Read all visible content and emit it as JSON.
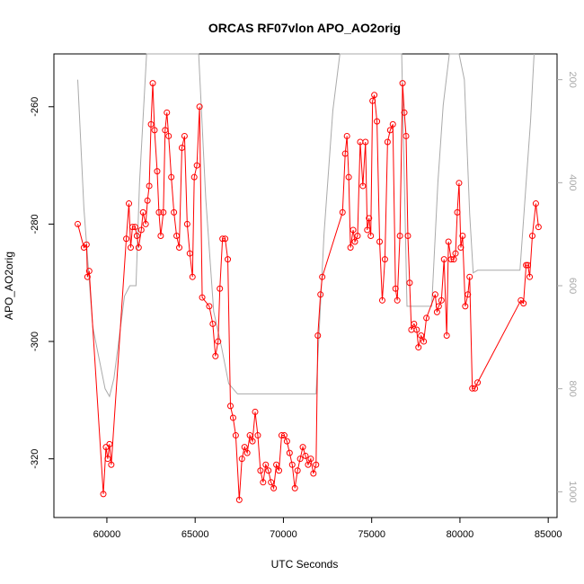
{
  "chart_data": {
    "type": "line",
    "title": "ORCAS RF07vlon APO_AO2orig",
    "xlabel": "UTC Seconds",
    "ylabel": "APO_AO2orig",
    "xlim": [
      57000,
      85500
    ],
    "ylim": [
      -330,
      -251
    ],
    "x_ticks": [
      60000,
      65000,
      70000,
      75000,
      80000,
      85000
    ],
    "x_tick_labels": [
      "60000",
      "65000",
      "70000",
      "75000",
      "80000",
      "85000"
    ],
    "y_ticks": [
      -260,
      -280,
      -300,
      -320
    ],
    "y_tick_labels": [
      "-260",
      "-280",
      "-300",
      "-320"
    ],
    "y2_range_top_to_bottom": [
      150,
      1050
    ],
    "y2_ticks": [
      200,
      400,
      600,
      800,
      1000
    ],
    "y2_tick_labels": [
      "200",
      "400",
      "600",
      "800",
      "1000"
    ],
    "grid": false,
    "colors": {
      "primary": "#ff0000",
      "secondary": "#aaaaaa",
      "axis": "#000000"
    },
    "series": [
      {
        "role": "primary",
        "marker": "open-circle",
        "points": [
          [
            58350,
            -280
          ],
          [
            58700,
            -284
          ],
          [
            58850,
            -283.5
          ],
          [
            58900,
            -289
          ],
          [
            59000,
            -288
          ],
          [
            59800,
            -326
          ],
          [
            59950,
            -318
          ],
          [
            60050,
            -320
          ],
          [
            60150,
            -317.5
          ],
          [
            60250,
            -321
          ],
          [
            61100,
            -282.5
          ],
          [
            61250,
            -276.5
          ],
          [
            61350,
            -284
          ],
          [
            61450,
            -280.5
          ],
          [
            61600,
            -280.5
          ],
          [
            61700,
            -282
          ],
          [
            61800,
            -284
          ],
          [
            61950,
            -281
          ],
          [
            62050,
            -278
          ],
          [
            62200,
            -280
          ],
          [
            62300,
            -276
          ],
          [
            62400,
            -273.5
          ],
          [
            62500,
            -263
          ],
          [
            62600,
            -256
          ],
          [
            62700,
            -264
          ],
          [
            62850,
            -271
          ],
          [
            62950,
            -278
          ],
          [
            63050,
            -282
          ],
          [
            63200,
            -278
          ],
          [
            63300,
            -264
          ],
          [
            63400,
            -261
          ],
          [
            63500,
            -265
          ],
          [
            63650,
            -272
          ],
          [
            63800,
            -278
          ],
          [
            63950,
            -282
          ],
          [
            64100,
            -284
          ],
          [
            64250,
            -267
          ],
          [
            64400,
            -265
          ],
          [
            64550,
            -280
          ],
          [
            64700,
            -285
          ],
          [
            64850,
            -289
          ],
          [
            64950,
            -272
          ],
          [
            65100,
            -270
          ],
          [
            65250,
            -260
          ],
          [
            65400,
            -292.5
          ],
          [
            65800,
            -294
          ],
          [
            66000,
            -297
          ],
          [
            66150,
            -302.5
          ],
          [
            66300,
            -300
          ],
          [
            66400,
            -291
          ],
          [
            66550,
            -282.5
          ],
          [
            66700,
            -282.5
          ],
          [
            66850,
            -286
          ],
          [
            67000,
            -311
          ],
          [
            67150,
            -313
          ],
          [
            67300,
            -316
          ],
          [
            67500,
            -327
          ],
          [
            67650,
            -320
          ],
          [
            67800,
            -318
          ],
          [
            67950,
            -319
          ],
          [
            68100,
            -316
          ],
          [
            68250,
            -317
          ],
          [
            68400,
            -312
          ],
          [
            68550,
            -316
          ],
          [
            68700,
            -322
          ],
          [
            68850,
            -324
          ],
          [
            69000,
            -321
          ],
          [
            69150,
            -322
          ],
          [
            69300,
            -324
          ],
          [
            69450,
            -325
          ],
          [
            69600,
            -321
          ],
          [
            69750,
            -322
          ],
          [
            69900,
            -316
          ],
          [
            70050,
            -316
          ],
          [
            70200,
            -317
          ],
          [
            70350,
            -319
          ],
          [
            70500,
            -321
          ],
          [
            70650,
            -325
          ],
          [
            70800,
            -322
          ],
          [
            70950,
            -320
          ],
          [
            71100,
            -318
          ],
          [
            71250,
            -319.5
          ],
          [
            71400,
            -321
          ],
          [
            71550,
            -320
          ],
          [
            71700,
            -322.5
          ],
          [
            71850,
            -321
          ],
          [
            71950,
            -299
          ],
          [
            72100,
            -292
          ],
          [
            72200,
            -289
          ],
          [
            73350,
            -278
          ],
          [
            73500,
            -268
          ],
          [
            73600,
            -265
          ],
          [
            73700,
            -272
          ],
          [
            73800,
            -284
          ],
          [
            73950,
            -281
          ],
          [
            74050,
            -283
          ],
          [
            74200,
            -282
          ],
          [
            74350,
            -266
          ],
          [
            74500,
            -273.5
          ],
          [
            74650,
            -266
          ],
          [
            74750,
            -281
          ],
          [
            74850,
            -279
          ],
          [
            74950,
            -282
          ],
          [
            75050,
            -259
          ],
          [
            75150,
            -258
          ],
          [
            75300,
            -262.5
          ],
          [
            75450,
            -283
          ],
          [
            75600,
            -293
          ],
          [
            75750,
            -286
          ],
          [
            75900,
            -266
          ],
          [
            76050,
            -264
          ],
          [
            76200,
            -263
          ],
          [
            76350,
            -291
          ],
          [
            76450,
            -293
          ],
          [
            76600,
            -282
          ],
          [
            76750,
            -256
          ],
          [
            76850,
            -261
          ],
          [
            76950,
            -265
          ],
          [
            77050,
            -282
          ],
          [
            77150,
            -290
          ],
          [
            77250,
            -298
          ],
          [
            77400,
            -297
          ],
          [
            77550,
            -298
          ],
          [
            77650,
            -301
          ],
          [
            77800,
            -299
          ],
          [
            77950,
            -300
          ],
          [
            78100,
            -296
          ],
          [
            78600,
            -292
          ],
          [
            78700,
            -295
          ],
          [
            78800,
            -294
          ],
          [
            78950,
            -293
          ],
          [
            79100,
            -286
          ],
          [
            79250,
            -299
          ],
          [
            79350,
            -283
          ],
          [
            79500,
            -286
          ],
          [
            79650,
            -286
          ],
          [
            79750,
            -285
          ],
          [
            79850,
            -278
          ],
          [
            79950,
            -273
          ],
          [
            80050,
            -284
          ],
          [
            80150,
            -282
          ],
          [
            80300,
            -294
          ],
          [
            80450,
            -292
          ],
          [
            80550,
            -289
          ],
          [
            80700,
            -308
          ],
          [
            80850,
            -308
          ],
          [
            81000,
            -307
          ],
          [
            83450,
            -293
          ],
          [
            83600,
            -293.5
          ],
          [
            83750,
            -287
          ],
          [
            83850,
            -287
          ],
          [
            83950,
            -289
          ],
          [
            84100,
            -282
          ],
          [
            84300,
            -276.5
          ],
          [
            84450,
            -280.5
          ]
        ]
      },
      {
        "role": "secondary",
        "marker": "none",
        "y2_points": [
          [
            58350,
            200
          ],
          [
            58700,
            450
          ],
          [
            59200,
            680
          ],
          [
            59900,
            800
          ],
          [
            60150,
            815
          ],
          [
            60400,
            780
          ],
          [
            61000,
            620
          ],
          [
            61300,
            600
          ],
          [
            61650,
            600
          ],
          [
            61850,
            400
          ],
          [
            62250,
            150
          ],
          [
            62500,
            150
          ],
          [
            62750,
            150
          ],
          [
            62950,
            150
          ],
          [
            63150,
            150
          ],
          [
            63300,
            150
          ],
          [
            63450,
            150
          ],
          [
            63650,
            150
          ],
          [
            63900,
            150
          ],
          [
            64150,
            150
          ],
          [
            64400,
            150
          ],
          [
            64700,
            150
          ],
          [
            64950,
            150
          ],
          [
            65200,
            150
          ],
          [
            65600,
            430
          ],
          [
            66050,
            650
          ],
          [
            66500,
            720
          ],
          [
            66900,
            790
          ],
          [
            67400,
            810
          ],
          [
            67900,
            810
          ],
          [
            68500,
            810
          ],
          [
            69000,
            810
          ],
          [
            69500,
            810
          ],
          [
            70000,
            810
          ],
          [
            70500,
            810
          ],
          [
            71000,
            810
          ],
          [
            71500,
            810
          ],
          [
            71850,
            810
          ],
          [
            72300,
            500
          ],
          [
            72800,
            260
          ],
          [
            73200,
            150
          ],
          [
            73500,
            150
          ],
          [
            73900,
            150
          ],
          [
            74300,
            150
          ],
          [
            74700,
            150
          ],
          [
            75100,
            150
          ],
          [
            75500,
            150
          ],
          [
            75900,
            150
          ],
          [
            76300,
            150
          ],
          [
            76700,
            150
          ],
          [
            77000,
            640
          ],
          [
            77300,
            640
          ],
          [
            77700,
            640
          ],
          [
            78100,
            640
          ],
          [
            78400,
            640
          ],
          [
            78750,
            400
          ],
          [
            79050,
            250
          ],
          [
            79400,
            150
          ],
          [
            79700,
            150
          ],
          [
            79950,
            150
          ],
          [
            80250,
            200
          ],
          [
            80550,
            460
          ],
          [
            80750,
            575
          ],
          [
            81000,
            570
          ],
          [
            81500,
            570
          ],
          [
            82000,
            570
          ],
          [
            82500,
            570
          ],
          [
            83000,
            570
          ],
          [
            83400,
            570
          ],
          [
            83750,
            400
          ],
          [
            84000,
            280
          ],
          [
            84200,
            150
          ]
        ]
      }
    ]
  }
}
